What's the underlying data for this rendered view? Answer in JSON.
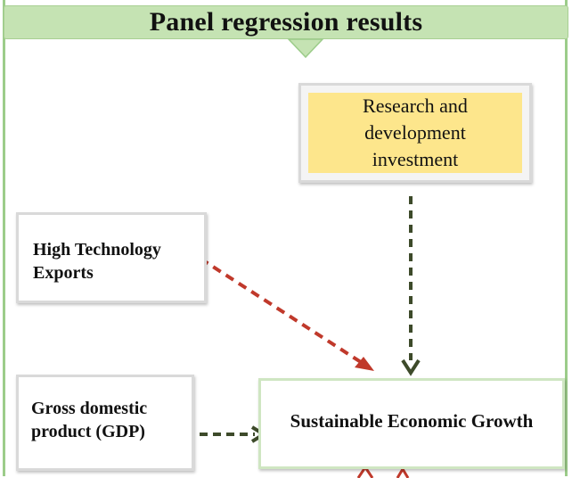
{
  "header": {
    "title": "Panel regression results"
  },
  "nodes": {
    "rd": {
      "line1": "Research and",
      "line2": "development",
      "line3": "investment"
    },
    "hte": {
      "line1": "High Technology",
      "line2": "Exports"
    },
    "gdp": {
      "line1": "Gross domestic",
      "line2": "product (GDP)"
    },
    "seg": {
      "label": "Sustainable Economic Growth"
    }
  },
  "colors": {
    "header_fill": "#c5e3b3",
    "rd_fill": "#fde68c",
    "arrow_dark_green": "#3d4a2a",
    "arrow_red": "#c0392b",
    "down_arrow_fill": "#c5e3b3"
  }
}
